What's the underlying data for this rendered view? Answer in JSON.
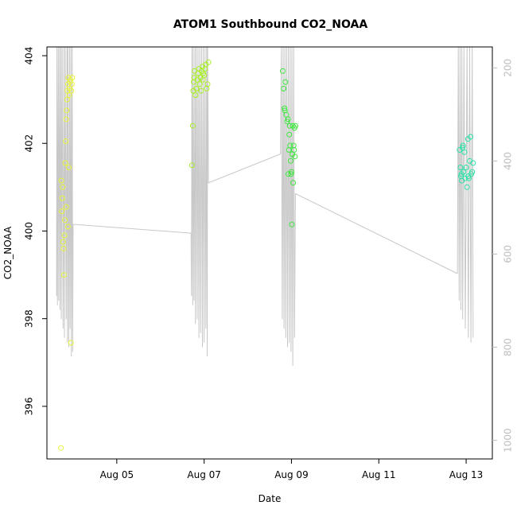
{
  "chart_data": {
    "type": "scatter",
    "title": "ATOM1 Southbound CO2_NOAA",
    "xlabel": "Date",
    "ylabel": "CO2_NOAA",
    "x_unit": "day of August 2016",
    "xlim": [
      3.4,
      13.6
    ],
    "ylim": [
      394.8,
      404.2
    ],
    "right_axis": {
      "ylim": [
        1040,
        155
      ],
      "ticks": [
        200,
        400,
        600,
        800,
        1000
      ],
      "color": "#bdbdbd"
    },
    "x_ticks": [
      {
        "value": 5,
        "label": "Aug 05"
      },
      {
        "value": 7,
        "label": "Aug 07"
      },
      {
        "value": 9,
        "label": "Aug 09"
      },
      {
        "value": 11,
        "label": "Aug 11"
      },
      {
        "value": 13,
        "label": "Aug 13"
      }
    ],
    "y_ticks": [
      396,
      398,
      400,
      402,
      404
    ],
    "grid": false,
    "series": [
      {
        "color": "#e8f53a",
        "points": [
          [
            3.72,
            395.05
          ],
          [
            3.73,
            401.15
          ],
          [
            3.74,
            400.45
          ],
          [
            3.75,
            400.75
          ],
          [
            3.76,
            401.0
          ],
          [
            3.77,
            399.75
          ],
          [
            3.78,
            399.6
          ],
          [
            3.79,
            399.0
          ],
          [
            3.8,
            399.9
          ],
          [
            3.81,
            400.25
          ],
          [
            3.82,
            401.55
          ],
          [
            3.83,
            402.05
          ],
          [
            3.84,
            402.55
          ],
          [
            3.85,
            402.75
          ],
          [
            3.86,
            403.0
          ],
          [
            3.87,
            403.2
          ],
          [
            3.88,
            403.35
          ],
          [
            3.89,
            403.5
          ],
          [
            3.9,
            401.45
          ],
          [
            3.91,
            403.1
          ],
          [
            3.92,
            403.25
          ],
          [
            3.93,
            403.4
          ],
          [
            3.94,
            403.45
          ],
          [
            3.95,
            397.45
          ],
          [
            3.96,
            403.2
          ],
          [
            3.97,
            403.35
          ],
          [
            3.98,
            403.5
          ],
          [
            3.88,
            400.1
          ],
          [
            3.84,
            400.55
          ]
        ]
      },
      {
        "color": "#a8f024",
        "points": [
          [
            6.72,
            401.5
          ],
          [
            6.74,
            402.4
          ],
          [
            6.75,
            403.2
          ],
          [
            6.76,
            403.4
          ],
          [
            6.77,
            403.5
          ],
          [
            6.78,
            403.65
          ],
          [
            6.8,
            403.1
          ],
          [
            6.82,
            403.25
          ],
          [
            6.84,
            403.45
          ],
          [
            6.86,
            403.6
          ],
          [
            6.88,
            403.7
          ],
          [
            6.9,
            403.35
          ],
          [
            6.92,
            403.5
          ],
          [
            6.94,
            403.65
          ],
          [
            6.96,
            403.75
          ],
          [
            6.98,
            403.6
          ],
          [
            7.0,
            403.55
          ],
          [
            7.02,
            403.7
          ],
          [
            7.04,
            403.8
          ],
          [
            7.06,
            403.25
          ],
          [
            7.08,
            403.35
          ],
          [
            7.1,
            403.85
          ],
          [
            6.93,
            403.2
          ],
          [
            6.97,
            403.45
          ]
        ]
      },
      {
        "color": "#3ee63e",
        "points": [
          [
            8.8,
            403.65
          ],
          [
            8.82,
            403.25
          ],
          [
            8.84,
            402.8
          ],
          [
            8.85,
            402.75
          ],
          [
            8.86,
            403.4
          ],
          [
            8.88,
            402.65
          ],
          [
            8.9,
            402.5
          ],
          [
            8.92,
            402.55
          ],
          [
            8.93,
            401.3
          ],
          [
            8.94,
            401.85
          ],
          [
            8.95,
            402.2
          ],
          [
            8.96,
            402.4
          ],
          [
            8.97,
            401.95
          ],
          [
            8.98,
            401.6
          ],
          [
            9.0,
            401.35
          ],
          [
            9.01,
            400.15
          ],
          [
            9.02,
            401.75
          ],
          [
            9.03,
            402.4
          ],
          [
            9.04,
            401.1
          ],
          [
            9.05,
            401.95
          ],
          [
            9.06,
            401.85
          ],
          [
            9.07,
            402.35
          ],
          [
            9.08,
            401.7
          ],
          [
            9.09,
            402.4
          ],
          [
            8.99,
            401.3
          ]
        ]
      },
      {
        "color": "#2de0a8",
        "points": [
          [
            12.85,
            401.85
          ],
          [
            12.87,
            401.45
          ],
          [
            12.88,
            401.25
          ],
          [
            12.89,
            401.3
          ],
          [
            12.9,
            401.15
          ],
          [
            12.92,
            401.9
          ],
          [
            12.94,
            401.35
          ],
          [
            12.96,
            401.8
          ],
          [
            12.98,
            401.2
          ],
          [
            13.0,
            401.45
          ],
          [
            13.02,
            401.0
          ],
          [
            13.04,
            402.1
          ],
          [
            13.06,
            401.2
          ],
          [
            13.08,
            401.6
          ],
          [
            13.1,
            402.15
          ],
          [
            13.12,
            401.3
          ],
          [
            13.14,
            401.35
          ],
          [
            13.16,
            401.55
          ],
          [
            12.93,
            401.95
          ],
          [
            13.05,
            401.25
          ]
        ]
      }
    ],
    "profile_trace": {
      "color": "#c8c8c8",
      "axis": "right",
      "segments": [
        [
          [
            3.62,
            690
          ],
          [
            3.63,
            150
          ],
          [
            3.64,
            710
          ],
          [
            3.66,
            150
          ],
          [
            3.67,
            700
          ],
          [
            3.69,
            150
          ],
          [
            3.7,
            720
          ],
          [
            3.72,
            150
          ],
          [
            3.73,
            740
          ],
          [
            3.75,
            150
          ],
          [
            3.77,
            760
          ],
          [
            3.79,
            150
          ],
          [
            3.8,
            780
          ],
          [
            3.82,
            150
          ],
          [
            3.84,
            740
          ],
          [
            3.86,
            150
          ],
          [
            3.87,
            790
          ],
          [
            3.88,
            150
          ],
          [
            3.9,
            800
          ],
          [
            3.92,
            150
          ],
          [
            3.93,
            760
          ],
          [
            3.95,
            150
          ],
          [
            3.96,
            820
          ],
          [
            3.98,
            150
          ],
          [
            3.99,
            810
          ],
          [
            4.0,
            536
          ],
          [
            6.7,
            555
          ]
        ],
        [
          [
            6.7,
            555
          ],
          [
            6.71,
            690
          ],
          [
            6.72,
            150
          ],
          [
            6.74,
            710
          ],
          [
            6.75,
            150
          ],
          [
            6.77,
            700
          ],
          [
            6.79,
            150
          ],
          [
            6.8,
            750
          ],
          [
            6.82,
            150
          ],
          [
            6.84,
            740
          ],
          [
            6.86,
            150
          ],
          [
            6.88,
            780
          ],
          [
            6.9,
            150
          ],
          [
            6.92,
            770
          ],
          [
            6.94,
            150
          ],
          [
            6.96,
            800
          ],
          [
            6.98,
            150
          ],
          [
            7.0,
            790
          ],
          [
            7.02,
            150
          ],
          [
            7.04,
            760
          ],
          [
            7.06,
            150
          ],
          [
            7.07,
            820
          ],
          [
            7.08,
            150
          ],
          [
            7.1,
            447
          ],
          [
            8.75,
            385
          ]
        ],
        [
          [
            8.75,
            385
          ],
          [
            8.77,
            150
          ],
          [
            8.79,
            740
          ],
          [
            8.81,
            150
          ],
          [
            8.83,
            760
          ],
          [
            8.85,
            150
          ],
          [
            8.87,
            780
          ],
          [
            8.89,
            150
          ],
          [
            8.91,
            800
          ],
          [
            8.93,
            150
          ],
          [
            8.95,
            790
          ],
          [
            8.97,
            150
          ],
          [
            8.99,
            810
          ],
          [
            9.01,
            150
          ],
          [
            9.03,
            840
          ],
          [
            9.05,
            150
          ],
          [
            9.07,
            780
          ],
          [
            9.09,
            470
          ],
          [
            12.8,
            642
          ]
        ],
        [
          [
            12.8,
            642
          ],
          [
            12.82,
            150
          ],
          [
            12.84,
            700
          ],
          [
            12.86,
            150
          ],
          [
            12.88,
            720
          ],
          [
            12.9,
            150
          ],
          [
            12.92,
            740
          ],
          [
            12.95,
            150
          ],
          [
            12.98,
            760
          ],
          [
            13.02,
            150
          ],
          [
            13.05,
            780
          ],
          [
            13.08,
            150
          ],
          [
            13.11,
            790
          ],
          [
            13.14,
            150
          ],
          [
            13.16,
            780
          ]
        ]
      ]
    }
  }
}
